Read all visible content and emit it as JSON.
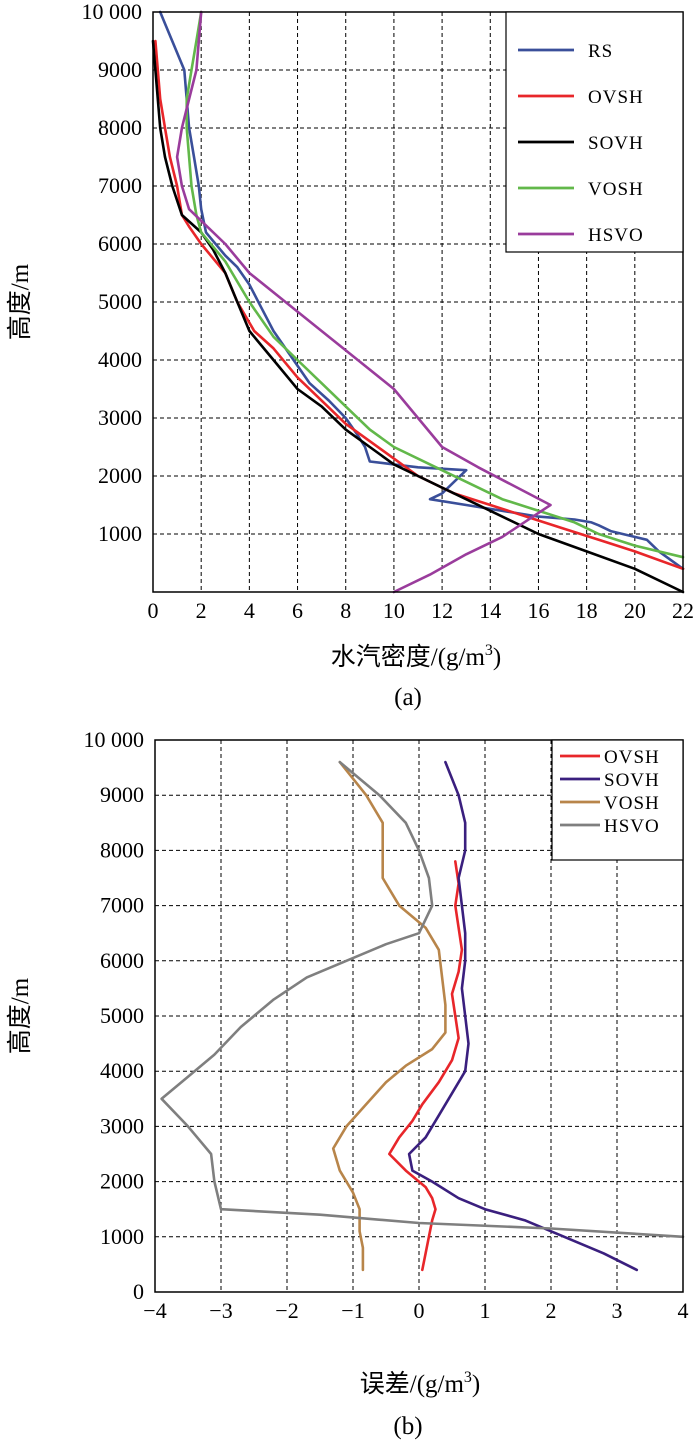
{
  "chart_data": [
    {
      "id": "a",
      "type": "line",
      "caption": "(a)",
      "xlabel": "水汽密度/(g/m",
      "xlabel_sup": "3",
      "xlabel_end": ")",
      "ylabel": "高度/m",
      "xlim": [
        0,
        22
      ],
      "ylim": [
        0,
        10000
      ],
      "xticks": [
        0,
        2,
        4,
        6,
        8,
        10,
        12,
        14,
        16,
        18,
        20,
        22
      ],
      "yticks": [
        1000,
        2000,
        3000,
        4000,
        5000,
        6000,
        7000,
        8000,
        9000
      ],
      "ytick_top_label": "10 000",
      "grid": true,
      "legend_position": "top-right",
      "series": [
        {
          "name": "RS",
          "color": "#3a4f9a",
          "points": [
            [
              22,
              400
            ],
            [
              21,
              700
            ],
            [
              20.5,
              900
            ],
            [
              19,
              1050
            ],
            [
              18.5,
              1150
            ],
            [
              18.2,
              1200
            ],
            [
              17.5,
              1250
            ],
            [
              16,
              1300
            ],
            [
              14.5,
              1400
            ],
            [
              13,
              1500
            ],
            [
              11.5,
              1600
            ],
            [
              12,
              1700
            ],
            [
              12.5,
              1900
            ],
            [
              13,
              2100
            ],
            [
              11,
              2150
            ],
            [
              10,
              2200
            ],
            [
              9,
              2250
            ],
            [
              8.8,
              2500
            ],
            [
              8.5,
              2700
            ],
            [
              8,
              3000
            ],
            [
              7.3,
              3300
            ],
            [
              6.5,
              3600
            ],
            [
              6,
              3900
            ],
            [
              5.5,
              4200
            ],
            [
              5,
              4500
            ],
            [
              4.5,
              4900
            ],
            [
              4,
              5300
            ],
            [
              3.5,
              5600
            ],
            [
              3,
              5800
            ],
            [
              2.2,
              6200
            ],
            [
              2,
              6600
            ],
            [
              1.9,
              7000
            ],
            [
              1.7,
              7500
            ],
            [
              1.5,
              8000
            ],
            [
              1.4,
              8500
            ],
            [
              1.3,
              9000
            ],
            [
              0.5,
              9800
            ],
            [
              0.3,
              10000
            ]
          ]
        },
        {
          "name": "OVSH",
          "color": "#e8262a",
          "points": [
            [
              22,
              400
            ],
            [
              20,
              700
            ],
            [
              18.5,
              900
            ],
            [
              17,
              1100
            ],
            [
              15.5,
              1300
            ],
            [
              14,
              1500
            ],
            [
              12.5,
              1700
            ],
            [
              11,
              2000
            ],
            [
              10,
              2300
            ],
            [
              9,
              2600
            ],
            [
              8,
              2900
            ],
            [
              7,
              3300
            ],
            [
              6,
              3700
            ],
            [
              5,
              4200
            ],
            [
              4.2,
              4500
            ],
            [
              3.5,
              5000
            ],
            [
              3,
              5500
            ],
            [
              2,
              6000
            ],
            [
              1.5,
              6300
            ],
            [
              1.2,
              6500
            ],
            [
              1,
              7000
            ],
            [
              0.7,
              7500
            ],
            [
              0.5,
              8000
            ],
            [
              0.3,
              8500
            ],
            [
              0.2,
              9000
            ],
            [
              0.1,
              9500
            ]
          ]
        },
        {
          "name": "SOVH",
          "color": "#000000",
          "points": [
            [
              22,
              0
            ],
            [
              20,
              400
            ],
            [
              18,
              700
            ],
            [
              16,
              1000
            ],
            [
              14,
              1400
            ],
            [
              12.5,
              1700
            ],
            [
              11,
              2000
            ],
            [
              10,
              2200
            ],
            [
              9,
              2500
            ],
            [
              8,
              2800
            ],
            [
              7,
              3200
            ],
            [
              6,
              3500
            ],
            [
              5,
              4000
            ],
            [
              4,
              4500
            ],
            [
              3.5,
              5000
            ],
            [
              3,
              5500
            ],
            [
              2.5,
              5900
            ],
            [
              2,
              6200
            ],
            [
              1.2,
              6500
            ],
            [
              0.8,
              7000
            ],
            [
              0.5,
              7500
            ],
            [
              0.3,
              8000
            ],
            [
              0.2,
              8500
            ],
            [
              0.1,
              9000
            ],
            [
              0,
              9500
            ]
          ]
        },
        {
          "name": "VOSH",
          "color": "#62b84a",
          "points": [
            [
              22,
              600
            ],
            [
              20,
              800
            ],
            [
              18.5,
              1000
            ],
            [
              17.5,
              1200
            ],
            [
              16,
              1400
            ],
            [
              14.5,
              1600
            ],
            [
              13,
              1900
            ],
            [
              11.5,
              2200
            ],
            [
              10,
              2500
            ],
            [
              9,
              2800
            ],
            [
              8,
              3200
            ],
            [
              7,
              3600
            ],
            [
              6,
              4000
            ],
            [
              5,
              4400
            ],
            [
              4,
              5000
            ],
            [
              3,
              5700
            ],
            [
              2,
              6200
            ],
            [
              1.8,
              6500
            ],
            [
              1.6,
              7000
            ],
            [
              1.5,
              7500
            ],
            [
              1.4,
              8000
            ],
            [
              1.4,
              8500
            ],
            [
              1.6,
              9000
            ],
            [
              1.8,
              9500
            ],
            [
              2,
              10000
            ]
          ]
        },
        {
          "name": "HSVO",
          "color": "#9a3c9c",
          "points": [
            [
              10,
              0
            ],
            [
              11.5,
              300
            ],
            [
              13,
              650
            ],
            [
              14.5,
              950
            ],
            [
              16.5,
              1500
            ],
            [
              13.5,
              2150
            ],
            [
              12,
              2500
            ],
            [
              11,
              3000
            ],
            [
              10,
              3500
            ],
            [
              8.5,
              4000
            ],
            [
              7,
              4500
            ],
            [
              5.5,
              5000
            ],
            [
              4,
              5500
            ],
            [
              3,
              6000
            ],
            [
              2,
              6400
            ],
            [
              1.5,
              6600
            ],
            [
              1.2,
              7000
            ],
            [
              1,
              7500
            ],
            [
              1.2,
              8000
            ],
            [
              1.5,
              8500
            ],
            [
              1.8,
              9000
            ],
            [
              2,
              10000
            ]
          ]
        }
      ]
    },
    {
      "id": "b",
      "type": "line",
      "caption": "(b)",
      "xlabel": "误差/(g/m",
      "xlabel_sup": "3",
      "xlabel_end": ")",
      "ylabel": "高度/m",
      "xlim": [
        -4,
        4
      ],
      "ylim": [
        0,
        10000
      ],
      "xticks": [
        -4,
        -3,
        -2,
        -1,
        0,
        1,
        2,
        3,
        4
      ],
      "yticks": [
        0,
        1000,
        2000,
        3000,
        4000,
        5000,
        6000,
        7000,
        8000,
        9000
      ],
      "ytick_top_label": "10 000",
      "grid": true,
      "legend_position": "top-right",
      "series": [
        {
          "name": "OVSH",
          "color": "#e8262a",
          "points": [
            [
              0.05,
              400
            ],
            [
              0.1,
              700
            ],
            [
              0.15,
              1000
            ],
            [
              0.2,
              1300
            ],
            [
              0.25,
              1500
            ],
            [
              0.2,
              1700
            ],
            [
              0.1,
              1900
            ],
            [
              -0.2,
              2200
            ],
            [
              -0.45,
              2500
            ],
            [
              -0.3,
              2800
            ],
            [
              -0.1,
              3100
            ],
            [
              0.05,
              3400
            ],
            [
              0.3,
              3800
            ],
            [
              0.5,
              4200
            ],
            [
              0.6,
              4600
            ],
            [
              0.55,
              5000
            ],
            [
              0.5,
              5400
            ],
            [
              0.6,
              5800
            ],
            [
              0.65,
              6200
            ],
            [
              0.6,
              6600
            ],
            [
              0.55,
              7000
            ],
            [
              0.6,
              7400
            ],
            [
              0.55,
              7800
            ]
          ]
        },
        {
          "name": "SOVH",
          "color": "#3a1f7e",
          "points": [
            [
              3.3,
              400
            ],
            [
              2.8,
              700
            ],
            [
              2.2,
              1000
            ],
            [
              1.6,
              1300
            ],
            [
              1.0,
              1500
            ],
            [
              0.6,
              1700
            ],
            [
              0.2,
              2000
            ],
            [
              -0.1,
              2200
            ],
            [
              -0.15,
              2500
            ],
            [
              0.1,
              2800
            ],
            [
              0.3,
              3200
            ],
            [
              0.5,
              3600
            ],
            [
              0.7,
              4000
            ],
            [
              0.75,
              4500
            ],
            [
              0.7,
              5000
            ],
            [
              0.65,
              5500
            ],
            [
              0.7,
              6000
            ],
            [
              0.7,
              6500
            ],
            [
              0.65,
              7000
            ],
            [
              0.6,
              7500
            ],
            [
              0.7,
              8000
            ],
            [
              0.7,
              8500
            ],
            [
              0.6,
              9000
            ],
            [
              0.4,
              9600
            ]
          ]
        },
        {
          "name": "VOSH",
          "color": "#b8854a",
          "points": [
            [
              -0.85,
              400
            ],
            [
              -0.85,
              800
            ],
            [
              -0.9,
              1100
            ],
            [
              -0.9,
              1500
            ],
            [
              -1.0,
              1800
            ],
            [
              -1.2,
              2200
            ],
            [
              -1.3,
              2600
            ],
            [
              -1.1,
              3000
            ],
            [
              -0.8,
              3400
            ],
            [
              -0.5,
              3800
            ],
            [
              -0.2,
              4100
            ],
            [
              0.2,
              4400
            ],
            [
              0.4,
              4700
            ],
            [
              0.4,
              5200
            ],
            [
              0.35,
              5700
            ],
            [
              0.3,
              6200
            ],
            [
              0.1,
              6600
            ],
            [
              -0.3,
              7000
            ],
            [
              -0.55,
              7500
            ],
            [
              -0.55,
              8000
            ],
            [
              -0.55,
              8500
            ],
            [
              -0.8,
              9000
            ],
            [
              -1.2,
              9600
            ]
          ]
        },
        {
          "name": "HSVO",
          "color": "#7f7f7f",
          "points": [
            [
              4,
              1000
            ],
            [
              2,
              1150
            ],
            [
              0,
              1250
            ],
            [
              -1.5,
              1400
            ],
            [
              -3,
              1500
            ],
            [
              -3.1,
              2000
            ],
            [
              -3.15,
              2500
            ],
            [
              -3.5,
              3000
            ],
            [
              -3.9,
              3500
            ],
            [
              -3.5,
              3900
            ],
            [
              -3.1,
              4300
            ],
            [
              -2.7,
              4800
            ],
            [
              -2.2,
              5300
            ],
            [
              -1.7,
              5700
            ],
            [
              -1.1,
              6000
            ],
            [
              -0.5,
              6300
            ],
            [
              0,
              6500
            ],
            [
              0.2,
              7000
            ],
            [
              0.15,
              7500
            ],
            [
              0,
              8000
            ],
            [
              -0.2,
              8500
            ],
            [
              -0.6,
              9000
            ],
            [
              -1.2,
              9600
            ]
          ]
        }
      ]
    }
  ]
}
